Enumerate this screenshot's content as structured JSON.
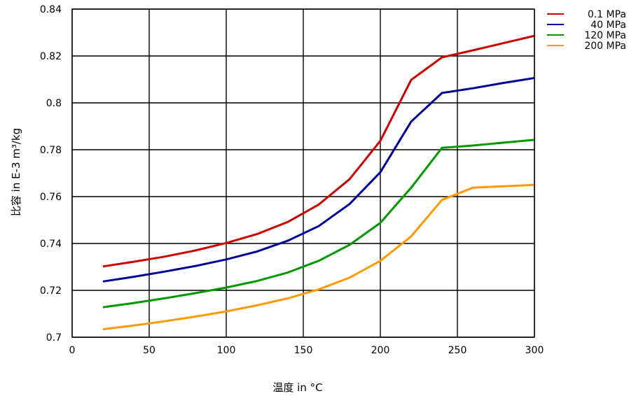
{
  "chart_data": {
    "type": "line",
    "xlabel": "温度 in °C",
    "ylabel": "比容 in E-3 m³/kg",
    "xlim": [
      0,
      300
    ],
    "ylim": [
      0.7,
      0.84
    ],
    "x_ticks": [
      "0",
      "50",
      "100",
      "150",
      "200",
      "250",
      "300"
    ],
    "y_ticks": [
      "0.7",
      "0.72",
      "0.74",
      "0.76",
      "0.78",
      "0.8",
      "0.82",
      "0.84"
    ],
    "grid": true,
    "legend_position": "top-right",
    "series": [
      {
        "name": "0.1 MPa",
        "color": "#cc0000",
        "x": [
          20,
          40,
          60,
          80,
          100,
          120,
          140,
          160,
          180,
          200,
          220,
          240,
          260,
          280,
          300
        ],
        "y": [
          0.7302,
          0.7322,
          0.7344,
          0.737,
          0.7402,
          0.744,
          0.7492,
          0.7566,
          0.7674,
          0.7838,
          0.8098,
          0.8194,
          0.8224,
          0.8255,
          0.8286
        ]
      },
      {
        "name": "40 MPa",
        "color": "#000099",
        "x": [
          20,
          40,
          60,
          80,
          100,
          120,
          140,
          160,
          180,
          200,
          220,
          240,
          260,
          280,
          300
        ],
        "y": [
          0.7238,
          0.7258,
          0.728,
          0.7304,
          0.7332,
          0.7366,
          0.7412,
          0.7474,
          0.7568,
          0.7704,
          0.792,
          0.8042,
          0.8062,
          0.8085,
          0.8106
        ]
      },
      {
        "name": "120 MPa",
        "color": "#009900",
        "x": [
          20,
          40,
          60,
          80,
          100,
          120,
          140,
          160,
          180,
          200,
          220,
          240,
          260,
          280,
          300
        ],
        "y": [
          0.7128,
          0.7146,
          0.7166,
          0.7188,
          0.7212,
          0.724,
          0.7276,
          0.7326,
          0.7394,
          0.7488,
          0.7638,
          0.7808,
          0.7818,
          0.783,
          0.7842
        ]
      },
      {
        "name": "200 MPa",
        "color": "#ff9900",
        "x": [
          20,
          40,
          60,
          80,
          100,
          120,
          140,
          160,
          180,
          200,
          220,
          240,
          260,
          280,
          300
        ],
        "y": [
          0.7034,
          0.705,
          0.7068,
          0.7088,
          0.711,
          0.7136,
          0.7166,
          0.7204,
          0.7254,
          0.7326,
          0.743,
          0.7586,
          0.7638,
          0.7644,
          0.765
        ]
      }
    ]
  }
}
